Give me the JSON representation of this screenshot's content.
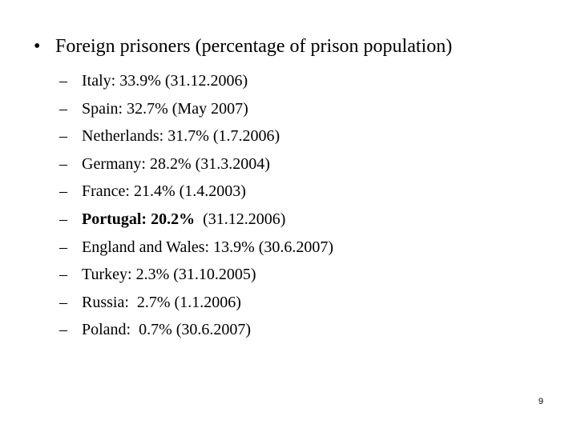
{
  "heading": {
    "bullet": "•",
    "text": "Foreign prisoners (percentage of prison population)"
  },
  "items": [
    {
      "dash": "–",
      "bold": "",
      "text": "Italy: 33.9% (31.12.2006)"
    },
    {
      "dash": "–",
      "bold": "",
      "text": "Spain: 32.7% (May 2007)"
    },
    {
      "dash": "–",
      "bold": "",
      "text": "Netherlands: 31.7% (1.7.2006)"
    },
    {
      "dash": "–",
      "bold": "",
      "text": "Germany: 28.2% (31.3.2004)"
    },
    {
      "dash": "–",
      "bold": "",
      "text": "France: 21.4% (1.4.2003)"
    },
    {
      "dash": "–",
      "bold": "Portugal: 20.2%",
      "text": "  (31.12.2006)"
    },
    {
      "dash": "–",
      "bold": "",
      "text": "England and Wales: 13.9% (30.6.2007)"
    },
    {
      "dash": "–",
      "bold": "",
      "text": "Turkey: 2.3% (31.10.2005)"
    },
    {
      "dash": "–",
      "bold": "",
      "text": "Russia:  2.7% (1.1.2006)"
    },
    {
      "dash": "–",
      "bold": "",
      "text": "Poland:  0.7% (30.6.2007)"
    }
  ],
  "page_number": "9"
}
